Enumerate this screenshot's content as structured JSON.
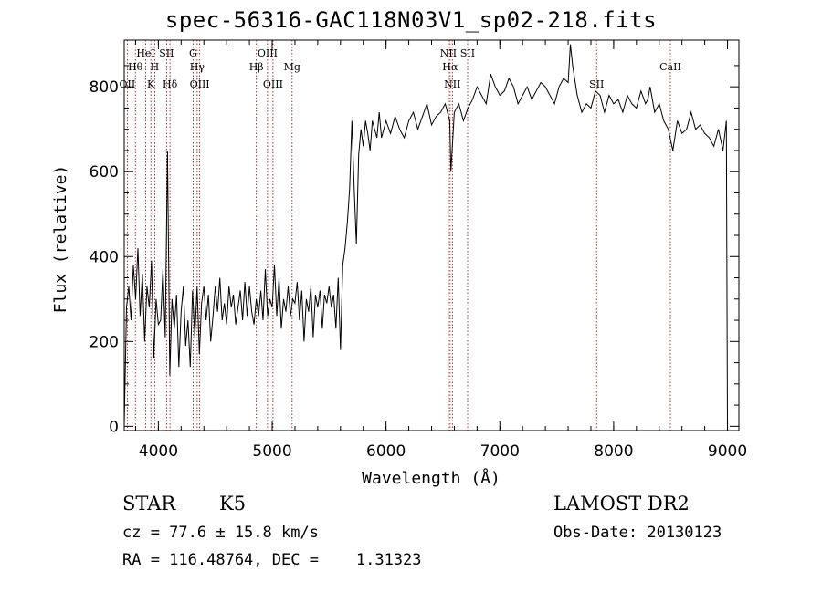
{
  "chart_data": {
    "type": "line",
    "title": "spec-56316-GAC118N03V1_sp02-218.fits",
    "xlabel": "Wavelength (Å)",
    "ylabel": "Flux (relative)",
    "xlim": [
      3700,
      9100
    ],
    "ylim": [
      -10,
      910
    ],
    "xticks": [
      "4000",
      "5000",
      "6000",
      "7000",
      "8000",
      "9000"
    ],
    "yticks": [
      "0",
      "200",
      "400",
      "600",
      "800"
    ],
    "grid": false,
    "series": [
      {
        "x": [
          3700,
          3720,
          3740,
          3760,
          3780,
          3800,
          3820,
          3840,
          3860,
          3880,
          3900,
          3920,
          3940,
          3960,
          3980,
          4000,
          4020,
          4040,
          4060,
          4080,
          4100,
          4120,
          4140,
          4160,
          4180,
          4200,
          4220,
          4240,
          4260,
          4280,
          4300,
          4320,
          4340,
          4360,
          4380,
          4400,
          4420,
          4440,
          4460,
          4480,
          4500,
          4520,
          4540,
          4560,
          4580,
          4600,
          4620,
          4640,
          4660,
          4680,
          4700,
          4720,
          4740,
          4760,
          4780,
          4800,
          4820,
          4840,
          4860,
          4880,
          4900,
          4920,
          4940,
          4960,
          4980,
          5000,
          5020,
          5040,
          5060,
          5080,
          5100,
          5120,
          5140,
          5160,
          5180,
          5200,
          5220,
          5240,
          5260,
          5280,
          5300,
          5320,
          5340,
          5360,
          5380,
          5400,
          5420,
          5440,
          5460,
          5480,
          5500,
          5520,
          5540,
          5560,
          5580,
          5600,
          5620,
          5640,
          5660,
          5680,
          5700,
          5720,
          5740,
          5760,
          5780,
          5800,
          5820,
          5840,
          5860,
          5880,
          5900,
          5920,
          5940,
          5960,
          5980,
          6000,
          6040,
          6080,
          6120,
          6160,
          6200,
          6240,
          6280,
          6320,
          6360,
          6400,
          6440,
          6480,
          6520,
          6560,
          6570,
          6600,
          6640,
          6680,
          6720,
          6760,
          6800,
          6840,
          6880,
          6920,
          6960,
          7000,
          7040,
          7080,
          7120,
          7160,
          7200,
          7240,
          7280,
          7320,
          7360,
          7400,
          7440,
          7480,
          7520,
          7560,
          7600,
          7620,
          7640,
          7680,
          7720,
          7760,
          7800,
          7840,
          7880,
          7920,
          7960,
          8000,
          8040,
          8080,
          8120,
          8160,
          8200,
          8240,
          8280,
          8300,
          8320,
          8360,
          8400,
          8440,
          8480,
          8520,
          8560,
          8600,
          8640,
          8680,
          8720,
          8760,
          8800,
          8840,
          8880,
          8920,
          8960,
          8990,
          9000
        ],
        "y": [
          0,
          280,
          330,
          250,
          380,
          300,
          420,
          260,
          360,
          200,
          330,
          280,
          390,
          160,
          300,
          240,
          250,
          370,
          210,
          650,
          120,
          300,
          230,
          310,
          140,
          270,
          330,
          190,
          250,
          140,
          320,
          210,
          330,
          170,
          290,
          330,
          250,
          310,
          200,
          260,
          330,
          270,
          350,
          250,
          290,
          240,
          330,
          280,
          310,
          240,
          280,
          320,
          250,
          340,
          260,
          330,
          270,
          240,
          300,
          260,
          320,
          250,
          370,
          260,
          300,
          280,
          380,
          260,
          350,
          230,
          300,
          270,
          330,
          260,
          300,
          290,
          340,
          250,
          320,
          200,
          300,
          270,
          330,
          210,
          310,
          280,
          320,
          230,
          310,
          290,
          330,
          280,
          310,
          230,
          350,
          180,
          380,
          420,
          480,
          560,
          720,
          560,
          430,
          640,
          700,
          660,
          720,
          690,
          650,
          720,
          700,
          680,
          740,
          680,
          700,
          720,
          690,
          730,
          700,
          680,
          720,
          740,
          700,
          730,
          760,
          710,
          730,
          740,
          760,
          720,
          600,
          740,
          760,
          720,
          750,
          770,
          800,
          780,
          760,
          830,
          800,
          780,
          790,
          820,
          800,
          760,
          780,
          800,
          770,
          790,
          810,
          800,
          780,
          760,
          800,
          820,
          810,
          900,
          850,
          780,
          740,
          760,
          750,
          790,
          780,
          740,
          780,
          760,
          770,
          740,
          780,
          760,
          750,
          790,
          760,
          770,
          800,
          740,
          760,
          720,
          700,
          650,
          720,
          690,
          700,
          740,
          700,
          710,
          690,
          680,
          660,
          700,
          650,
          720,
          0
        ]
      }
    ],
    "emission_lines": [
      {
        "label": "OII",
        "wave": 3727
      },
      {
        "label": "Hθ",
        "wave": 3798
      },
      {
        "label": "HeI",
        "wave": 3889
      },
      {
        "label": "K",
        "wave": 3934
      },
      {
        "label": "H",
        "wave": 3968
      },
      {
        "label": "SII",
        "wave": 4072
      },
      {
        "label": "Hδ",
        "wave": 4102
      },
      {
        "label": "Hγ",
        "wave": 4341
      },
      {
        "label": "G",
        "wave": 4305
      },
      {
        "label": "OIII",
        "wave": 4363
      },
      {
        "label": "Hβ",
        "wave": 4861
      },
      {
        "label": "OIII",
        "wave": 4959
      },
      {
        "label": "OIII",
        "wave": 5007
      },
      {
        "label": "Mg",
        "wave": 5175
      },
      {
        "label": "NII",
        "wave": 6548
      },
      {
        "label": "NII",
        "wave": 6583
      },
      {
        "label": "Hα",
        "wave": 6563
      },
      {
        "label": "SII",
        "wave": 6717
      },
      {
        "label": "SII",
        "wave": 7850
      },
      {
        "label": "CaII",
        "wave": 8498
      }
    ]
  },
  "info": {
    "class": "STAR",
    "subclass": "K5",
    "survey": "LAMOST DR2",
    "cz": "cz = 77.6 ± 15.8 km/s",
    "obs_date": "Obs-Date: 20130123",
    "coords": "RA = 116.48764, DEC =    1.31323"
  },
  "colors": {
    "line": "#000000",
    "markers": "#8b0000"
  }
}
